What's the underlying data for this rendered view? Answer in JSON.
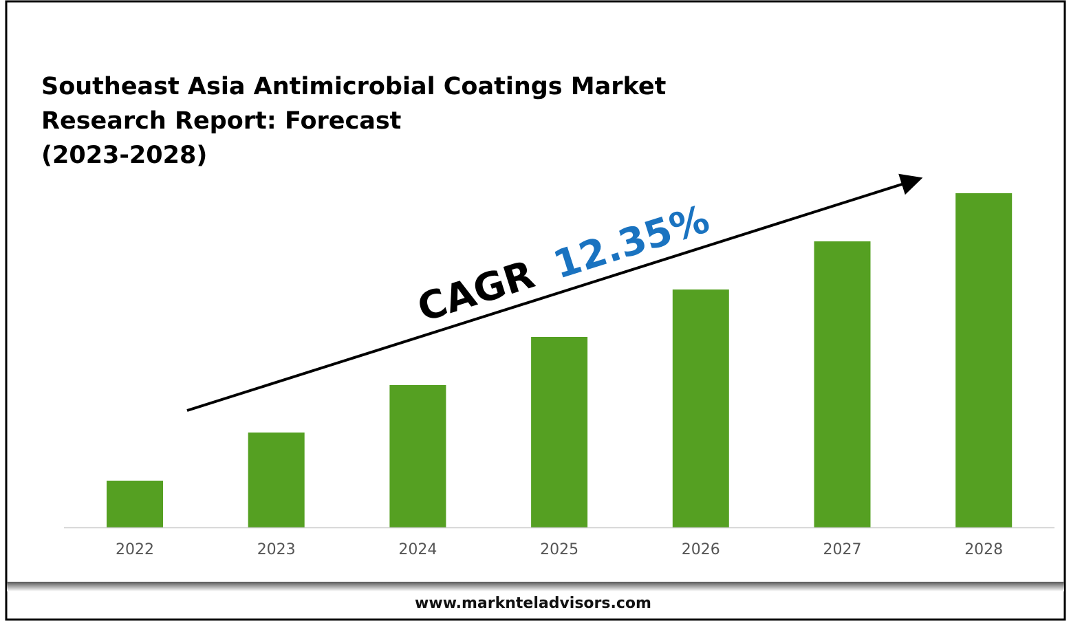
{
  "chart_data": {
    "type": "bar",
    "title_lines": [
      "Southeast Asia Antimicrobial Coatings Market",
      "Research Report: Forecast",
      "(2023-2028)"
    ],
    "categories": [
      "2022",
      "2023",
      "2024",
      "2025",
      "2026",
      "2027",
      "2028"
    ],
    "values": [
      68,
      138,
      207,
      277,
      346,
      416,
      486
    ],
    "value_units": "relative (no y-axis shown)",
    "ylim": [
      0,
      500
    ],
    "xlabel": "",
    "ylabel": "",
    "grid": false,
    "bar_color": "#55a022",
    "annotation": {
      "label": "CAGR",
      "value": "12.35%",
      "value_color": "#1a73c0"
    }
  },
  "footer": {
    "website": "www.marknteladvisors.com"
  }
}
